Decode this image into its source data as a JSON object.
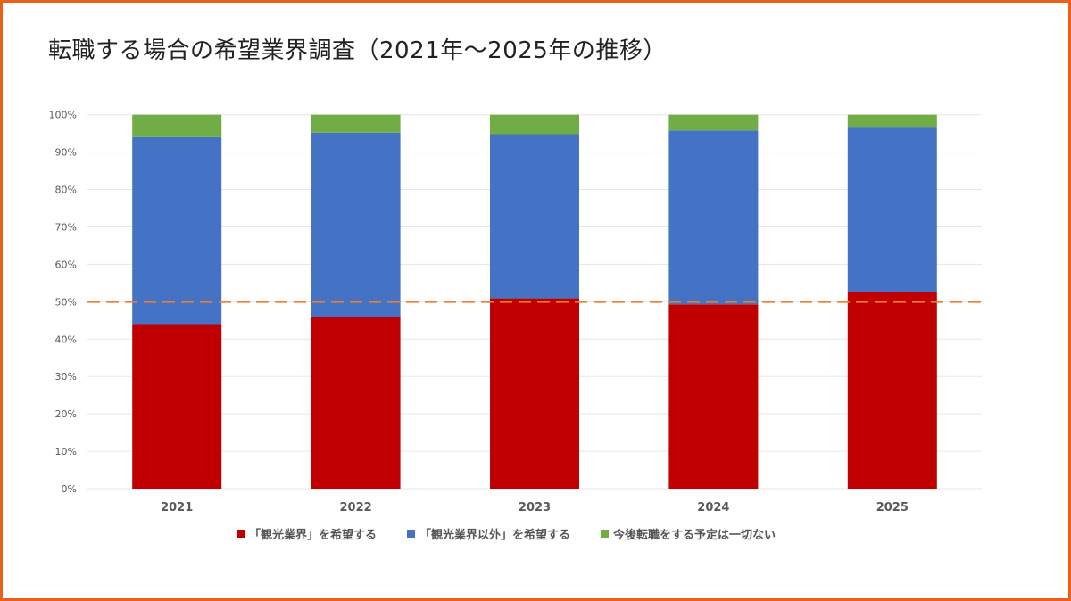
{
  "chart_data": {
    "type": "bar",
    "stacked": true,
    "title": "転職する場合の希望業界調査（2021年～2025年の推移）",
    "categories": [
      "2021",
      "2022",
      "2023",
      "2024",
      "2025"
    ],
    "series": [
      {
        "name": "「観光業界」を希望する",
        "color": "#c00000",
        "values": [
          44.0,
          45.9,
          50.9,
          49.3,
          52.5
        ]
      },
      {
        "name": "「観光業界以外」を希望する",
        "color": "#4472c4",
        "values": [
          50.0,
          49.3,
          43.9,
          46.5,
          44.3
        ]
      },
      {
        "name": "今後転職をする予定は一切ない",
        "color": "#70ad47",
        "values": [
          6.0,
          4.8,
          5.2,
          4.2,
          3.2
        ]
      }
    ],
    "ylim": [
      0,
      100
    ],
    "yticks": [
      "0%",
      "10%",
      "20%",
      "30%",
      "40%",
      "50%",
      "60%",
      "70%",
      "80%",
      "90%",
      "100%"
    ],
    "reference_line": {
      "value": 50,
      "color": "#ed7d31",
      "style": "dashed"
    },
    "grid": true,
    "legend_position": "bottom"
  }
}
